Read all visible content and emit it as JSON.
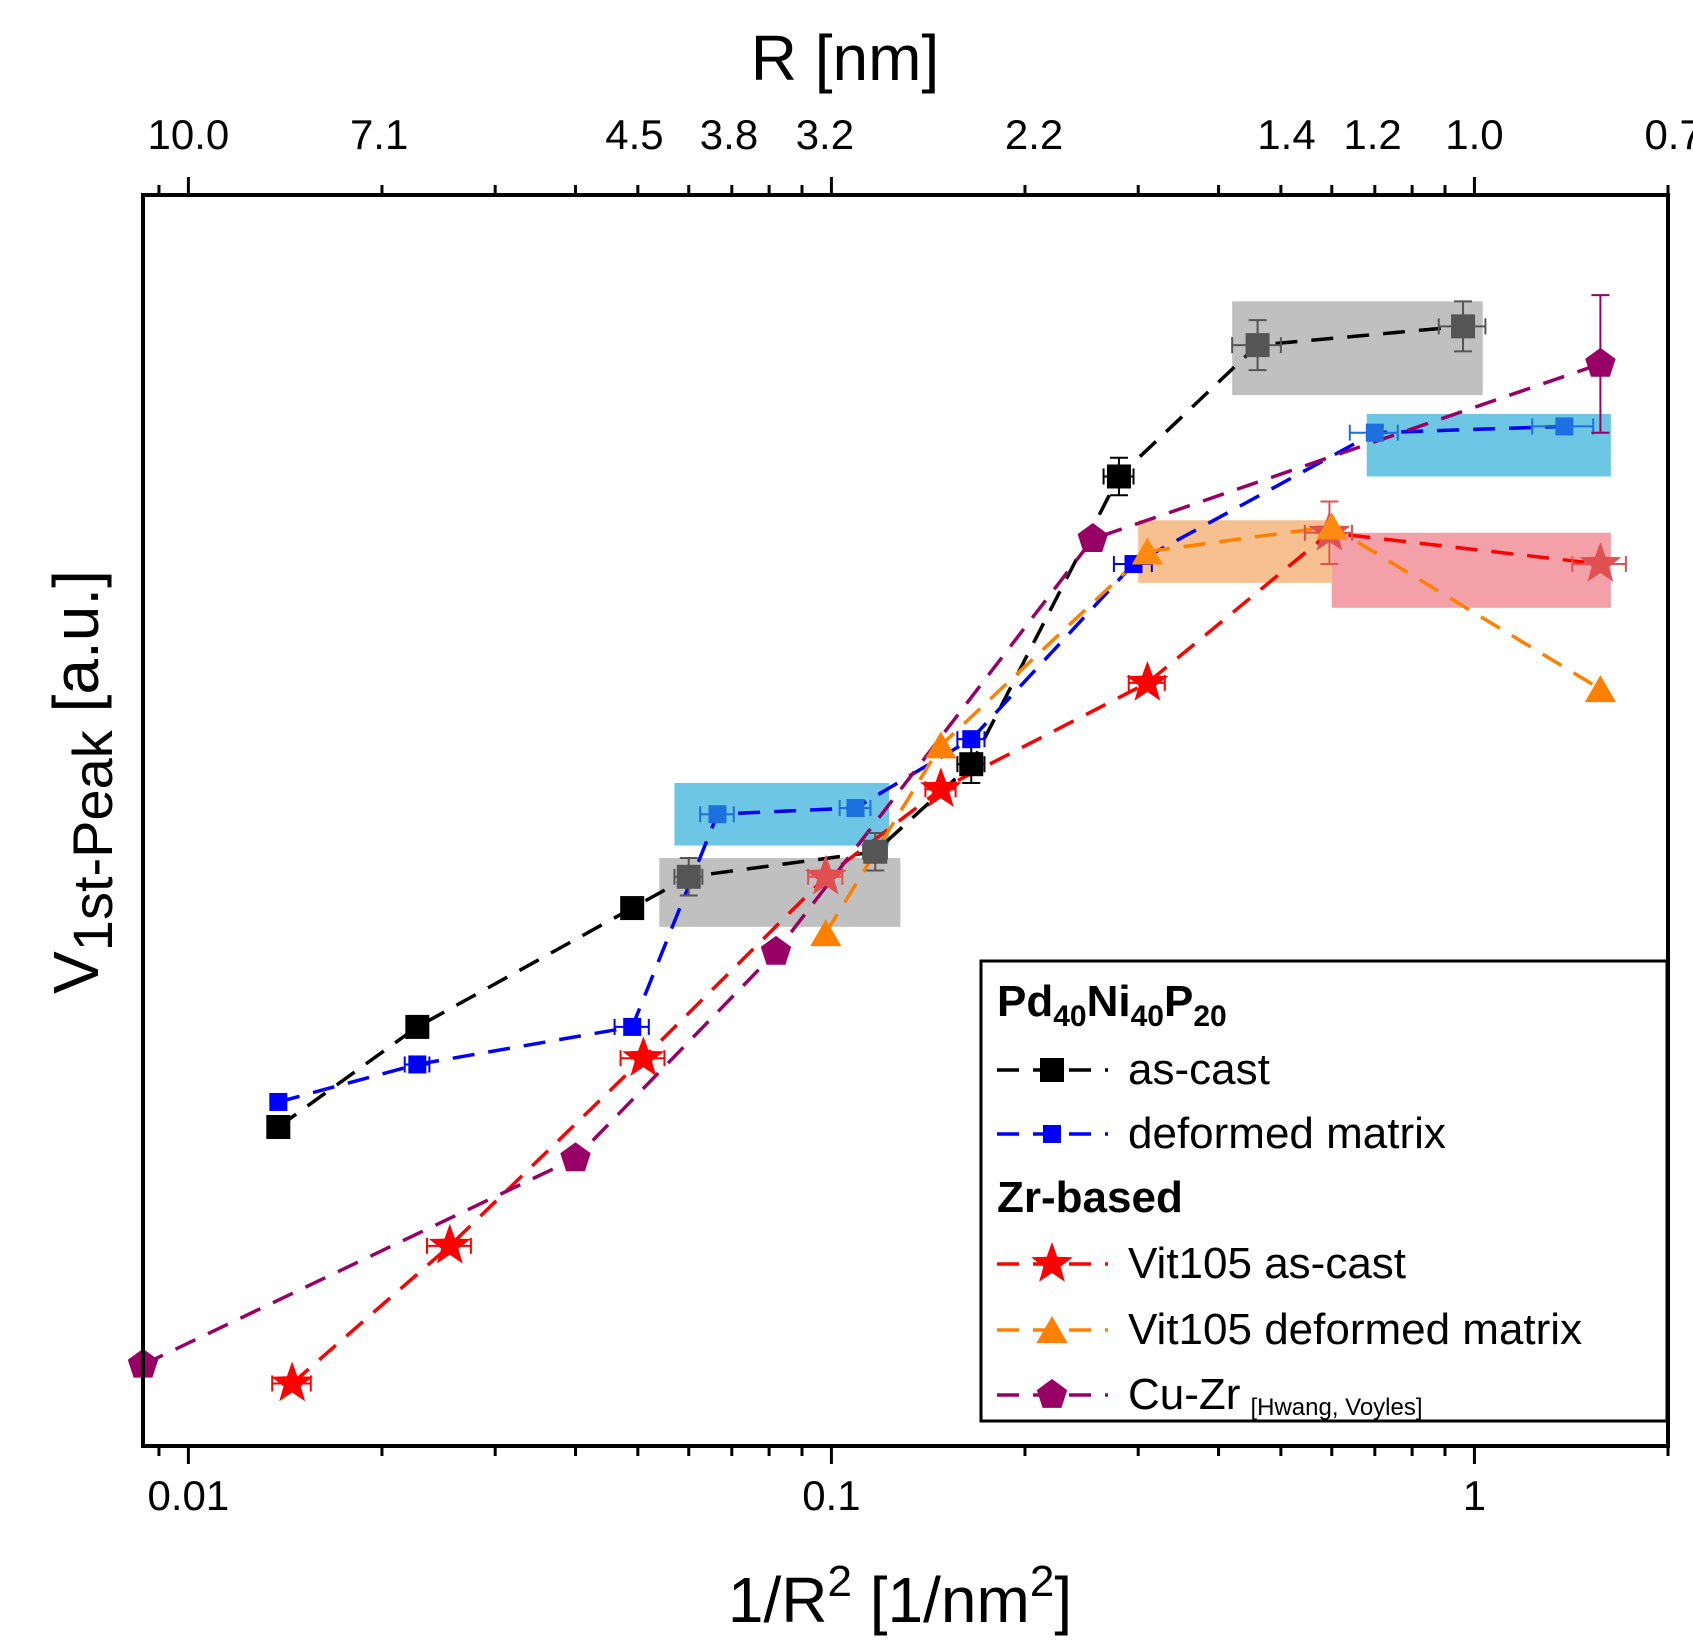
{
  "chart_data": {
    "type": "line",
    "x_scale": "log",
    "xlabel": "1/R",
    "xlabel_sup": "2",
    "xlabel_tail": " [1/nm",
    "xlabel_sup2": "2",
    "xlabel_end": "]",
    "ylabel_main": "V",
    "ylabel_sub": "1st-Peak",
    "ylabel_tail": " [a.u.]",
    "top_axis_label": "R [nm]",
    "xlim": [
      0.0085,
      2.0
    ],
    "ylim": [
      0,
      100
    ],
    "bottom_ticks": [
      {
        "value": 0.01,
        "label": "0.01"
      },
      {
        "value": 0.1,
        "label": "0.1"
      },
      {
        "value": 1,
        "label": "1"
      }
    ],
    "top_ticks": [
      {
        "value": 0.01,
        "label": "10.0"
      },
      {
        "value": 0.0198,
        "label": "7.1"
      },
      {
        "value": 0.0494,
        "label": "4.5"
      },
      {
        "value": 0.0693,
        "label": "3.8"
      },
      {
        "value": 0.0977,
        "label": "3.2"
      },
      {
        "value": 0.2066,
        "label": "2.2"
      },
      {
        "value": 0.5102,
        "label": "1.4"
      },
      {
        "value": 0.6944,
        "label": "1.2"
      },
      {
        "value": 1.0,
        "label": "1.0"
      },
      {
        "value": 2.0408,
        "label": "0.7"
      }
    ],
    "highlight_boxes": [
      {
        "x0": 0.42,
        "x1": 1.03,
        "y0": 84.0,
        "y1": 91.5,
        "color": "#c0c0c0"
      },
      {
        "x0": 0.68,
        "x1": 1.63,
        "y0": 77.5,
        "y1": 82.5,
        "color": "#6cc6e4"
      },
      {
        "x0": 0.3,
        "x1": 0.6,
        "y0": 69.0,
        "y1": 74.0,
        "color": "#f7c091"
      },
      {
        "x0": 0.6,
        "x1": 1.63,
        "y0": 67.0,
        "y1": 73.0,
        "color": "#f4a0a8"
      },
      {
        "x0": 0.057,
        "x1": 0.123,
        "y0": 48.0,
        "y1": 53.0,
        "color": "#6cc6e4"
      },
      {
        "x0": 0.054,
        "x1": 0.128,
        "y0": 41.5,
        "y1": 47.0,
        "color": "#c0c0c0"
      }
    ],
    "series": [
      {
        "name": "as-cast",
        "group": "Pd40Ni40P20",
        "color": "#000000",
        "marker": "square",
        "x": [
          0.0138,
          0.0227,
          0.049,
          0.06,
          0.117,
          0.165,
          0.28,
          0.46,
          0.96
        ],
        "y": [
          25.5,
          33.5,
          43.0,
          45.5,
          47.5,
          54.5,
          77.5,
          88.0,
          89.5
        ],
        "xerr": [
          0,
          0,
          0,
          0.003,
          0.005,
          0.008,
          0.015,
          0.04,
          0.08
        ],
        "yerr": [
          0,
          0,
          0,
          1.5,
          1.5,
          1.5,
          1.5,
          2.0,
          2.0
        ],
        "highlight": [
          false,
          false,
          false,
          true,
          true,
          false,
          false,
          true,
          true
        ]
      },
      {
        "name": "deformed matrix",
        "group": "Pd40Ni40P20",
        "color": "#0000ff",
        "marker": "square-small",
        "x": [
          0.0138,
          0.0227,
          0.049,
          0.0665,
          0.109,
          0.165,
          0.295,
          0.7,
          1.38
        ],
        "y": [
          27.5,
          30.5,
          33.5,
          50.5,
          51.0,
          56.5,
          70.5,
          81.0,
          81.5
        ],
        "xerr": [
          0,
          0.001,
          0.003,
          0.004,
          0.006,
          0.008,
          0.02,
          0.06,
          0.15
        ],
        "yerr": [
          0,
          0,
          0,
          0,
          0,
          0,
          0,
          0,
          0
        ],
        "highlight": [
          false,
          false,
          false,
          true,
          true,
          false,
          false,
          true,
          true
        ]
      },
      {
        "name": "Vit105 as-cast",
        "group": "Zr-based",
        "color": "#ff0000",
        "marker": "star",
        "x": [
          0.0145,
          0.0255,
          0.051,
          0.098,
          0.148,
          0.31,
          0.595,
          1.57
        ],
        "y": [
          5.0,
          16.0,
          31.0,
          45.5,
          52.5,
          61.0,
          73.0,
          70.5
        ],
        "xerr": [
          0.001,
          0.002,
          0.004,
          0.006,
          0.008,
          0.02,
          0.05,
          0.15
        ],
        "yerr": [
          0,
          0,
          0,
          0,
          0,
          0,
          2.5,
          0
        ],
        "highlight": [
          false,
          false,
          false,
          true,
          false,
          false,
          true,
          true
        ]
      },
      {
        "name": "Vit105 deformed matrix",
        "group": "Zr-based",
        "color": "#ff8000",
        "marker": "triangle",
        "x": [
          0.098,
          0.148,
          0.31,
          0.6,
          1.57
        ],
        "y": [
          41.0,
          56.0,
          71.5,
          73.5,
          60.5
        ],
        "xerr": [
          0,
          0,
          0,
          0,
          0
        ],
        "yerr": [
          0,
          0,
          0,
          0,
          0
        ],
        "highlight": [
          false,
          false,
          true,
          true,
          false
        ]
      },
      {
        "name": "Cu-Zr",
        "name_note": "[Hwang, Voyles]",
        "group": "Zr-based",
        "color": "#990066",
        "marker": "pentagon",
        "x": [
          0.0085,
          0.04,
          0.082,
          0.255,
          1.57
        ],
        "y": [
          6.5,
          23.0,
          39.5,
          72.5,
          86.5
        ],
        "xerr": [
          0,
          0,
          0,
          0,
          0
        ],
        "yerr": [
          0,
          0,
          0,
          0,
          5.5
        ],
        "highlight": [
          false,
          false,
          false,
          false,
          false
        ]
      }
    ],
    "legend": {
      "position": "bottom-right",
      "group1_title": "Pd",
      "group1_title_parts": [
        {
          "text": "Pd",
          "sub": "40"
        },
        {
          "text": "Ni",
          "sub": "40"
        },
        {
          "text": "P",
          "sub": "20"
        }
      ],
      "group2_title": "Zr-based"
    }
  }
}
